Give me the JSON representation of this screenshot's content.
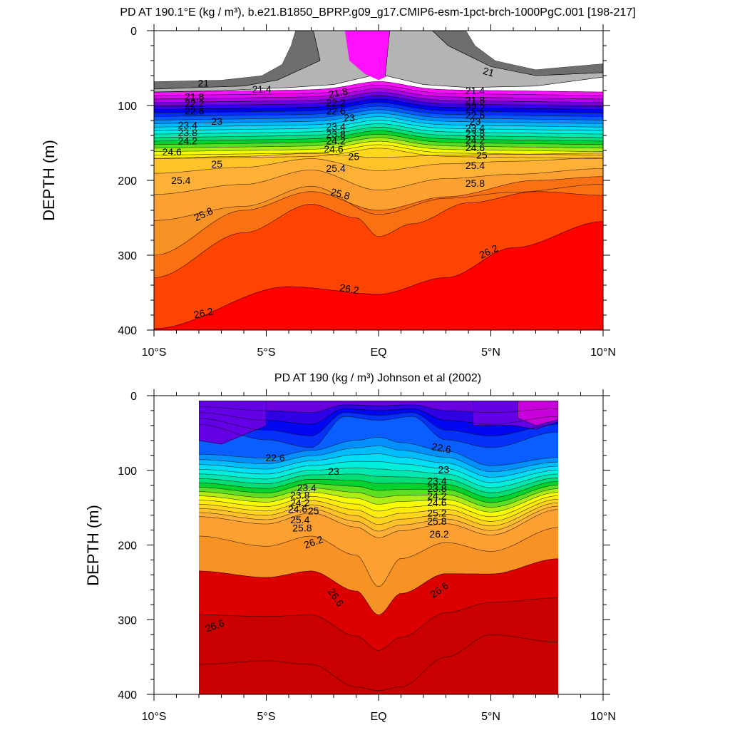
{
  "chart_data": [
    {
      "type": "contour",
      "title": "PD AT 190.1°E (kg / m³), b.e21.B1850_BPRP.g09_g17.CMIP6-esm-1pct-brch-1000PgC.001 [198-217]",
      "ylabel": "DEPTH (m)",
      "xlabel": "",
      "x_ticklabels": [
        "10°S",
        "5°S",
        "EQ",
        "5°N",
        "10°N"
      ],
      "x_tick_values": [
        -10,
        -5,
        0,
        5,
        10
      ],
      "y_ticklabels": [
        "0",
        "100",
        "200",
        "300",
        "400"
      ],
      "y_tick_values": [
        0,
        100,
        200,
        300,
        400
      ],
      "xlim": [
        -10,
        10
      ],
      "ylim": [
        400,
        0
      ],
      "levels": [
        21,
        21.2,
        21.4,
        21.6,
        21.8,
        22,
        22.2,
        22.4,
        22.6,
        22.8,
        23,
        23.2,
        23.4,
        23.6,
        23.8,
        24,
        24.2,
        24.4,
        24.6,
        24.8,
        25,
        25.2,
        25.4,
        25.6,
        25.8,
        26,
        26.2
      ],
      "contour_labels": [
        {
          "text": "21",
          "lat": -7.8,
          "depth": 70,
          "angle": 0
        },
        {
          "text": "21.4",
          "lat": -5.2,
          "depth": 78,
          "angle": 0
        },
        {
          "text": "21.8",
          "lat": -8.2,
          "depth": 88,
          "angle": 0
        },
        {
          "text": "22.2",
          "lat": -8.2,
          "depth": 97,
          "angle": 0
        },
        {
          "text": "22.6",
          "lat": -8.2,
          "depth": 107,
          "angle": 0
        },
        {
          "text": "23",
          "lat": -7.2,
          "depth": 121,
          "angle": 0
        },
        {
          "text": "23.4",
          "lat": -8.5,
          "depth": 126,
          "angle": 0
        },
        {
          "text": "23.8",
          "lat": -8.5,
          "depth": 136,
          "angle": 0
        },
        {
          "text": "24.2",
          "lat": -8.5,
          "depth": 147,
          "angle": 0
        },
        {
          "text": "24.6",
          "lat": -9.2,
          "depth": 162,
          "angle": 0
        },
        {
          "text": "25",
          "lat": -7.2,
          "depth": 178,
          "angle": 0
        },
        {
          "text": "25.4",
          "lat": -8.8,
          "depth": 200,
          "angle": 0
        },
        {
          "text": "25.8",
          "lat": -7.8,
          "depth": 245,
          "angle": -25
        },
        {
          "text": "26.2",
          "lat": -7.8,
          "depth": 377,
          "angle": -12
        },
        {
          "text": "21.8",
          "lat": -1.8,
          "depth": 83,
          "angle": -10
        },
        {
          "text": "22.2",
          "lat": -1.9,
          "depth": 96,
          "angle": 0
        },
        {
          "text": "22.6",
          "lat": -1.9,
          "depth": 107,
          "angle": 0
        },
        {
          "text": "23",
          "lat": -1.3,
          "depth": 116,
          "angle": 0
        },
        {
          "text": "23.4",
          "lat": -1.9,
          "depth": 128,
          "angle": 0
        },
        {
          "text": "23.8",
          "lat": -1.9,
          "depth": 138,
          "angle": 0
        },
        {
          "text": "24.2",
          "lat": -1.9,
          "depth": 147,
          "angle": 0
        },
        {
          "text": "24.6",
          "lat": -2.0,
          "depth": 158,
          "angle": 0
        },
        {
          "text": "25",
          "lat": -1.1,
          "depth": 168,
          "angle": 0
        },
        {
          "text": "25.4",
          "lat": -1.9,
          "depth": 184,
          "angle": 0
        },
        {
          "text": "25.8",
          "lat": -1.7,
          "depth": 218,
          "angle": 15
        },
        {
          "text": "26.2",
          "lat": -1.3,
          "depth": 345,
          "angle": 10
        },
        {
          "text": "21.4",
          "lat": 4.3,
          "depth": 80,
          "angle": 0
        },
        {
          "text": "21.8",
          "lat": 4.3,
          "depth": 93,
          "angle": 0
        },
        {
          "text": "22.2",
          "lat": 4.3,
          "depth": 103,
          "angle": 0
        },
        {
          "text": "22.6",
          "lat": 4.3,
          "depth": 113,
          "angle": 0
        },
        {
          "text": "23",
          "lat": 4.3,
          "depth": 121,
          "angle": 0
        },
        {
          "text": "23.4",
          "lat": 4.3,
          "depth": 130,
          "angle": 0
        },
        {
          "text": "23.8",
          "lat": 4.3,
          "depth": 137,
          "angle": 0
        },
        {
          "text": "24.2",
          "lat": 4.3,
          "depth": 146,
          "angle": 0
        },
        {
          "text": "24.6",
          "lat": 4.3,
          "depth": 156,
          "angle": 0
        },
        {
          "text": "25",
          "lat": 4.6,
          "depth": 166,
          "angle": 0
        },
        {
          "text": "25.4",
          "lat": 4.3,
          "depth": 180,
          "angle": 0
        },
        {
          "text": "25.8",
          "lat": 4.3,
          "depth": 204,
          "angle": 0
        },
        {
          "text": "26.2",
          "lat": 4.9,
          "depth": 295,
          "angle": -25
        },
        {
          "text": "21",
          "lat": 4.9,
          "depth": 55,
          "angle": 15
        }
      ]
    },
    {
      "type": "contour",
      "title": "PD AT 190 (kg / m³) Johnson et al (2002)",
      "ylabel": "DEPTH (m)",
      "xlabel": "",
      "x_ticklabels": [
        "10°S",
        "5°S",
        "EQ",
        "5°N",
        "10°N"
      ],
      "x_tick_values": [
        -10,
        -5,
        0,
        5,
        10
      ],
      "y_ticklabels": [
        "0",
        "100",
        "200",
        "300",
        "400"
      ],
      "y_tick_values": [
        0,
        100,
        200,
        300,
        400
      ],
      "xlim": [
        -10,
        10
      ],
      "ylim": [
        400,
        0
      ],
      "data_lat_range": [
        -8,
        8
      ],
      "data_depth_range": [
        7,
        400
      ],
      "levels": [
        22.2,
        22.4,
        22.6,
        22.8,
        23,
        23.2,
        23.4,
        23.6,
        23.8,
        24,
        24.2,
        24.4,
        24.6,
        24.8,
        25,
        25.2,
        25.4,
        25.6,
        25.8,
        26,
        26.2,
        26.4,
        26.6,
        26.8
      ],
      "contour_labels": [
        {
          "text": "22.6",
          "lat": -4.6,
          "depth": 83,
          "angle": 0
        },
        {
          "text": "23",
          "lat": -2.0,
          "depth": 101,
          "angle": 0
        },
        {
          "text": "23.4",
          "lat": -3.2,
          "depth": 123,
          "angle": 0
        },
        {
          "text": "23.8",
          "lat": -3.5,
          "depth": 133,
          "angle": 0
        },
        {
          "text": "24.2",
          "lat": -3.5,
          "depth": 143,
          "angle": 0
        },
        {
          "text": "24.6",
          "lat": -3.6,
          "depth": 152,
          "angle": 0
        },
        {
          "text": "25",
          "lat": -2.9,
          "depth": 154,
          "angle": 0
        },
        {
          "text": "25.4",
          "lat": -3.5,
          "depth": 166,
          "angle": 0
        },
        {
          "text": "25.8",
          "lat": -3.4,
          "depth": 177,
          "angle": 0
        },
        {
          "text": "26.2",
          "lat": -2.9,
          "depth": 196,
          "angle": -20
        },
        {
          "text": "26.6",
          "lat": -1.9,
          "depth": 270,
          "angle": 55
        },
        {
          "text": "26.6",
          "lat": -7.3,
          "depth": 308,
          "angle": -20
        },
        {
          "text": "22.6",
          "lat": 2.8,
          "depth": 70,
          "angle": 10
        },
        {
          "text": "23",
          "lat": 2.9,
          "depth": 99,
          "angle": 0
        },
        {
          "text": "23.4",
          "lat": 2.6,
          "depth": 114,
          "angle": 0
        },
        {
          "text": "23.8",
          "lat": 2.6,
          "depth": 124,
          "angle": 0
        },
        {
          "text": "24.2",
          "lat": 2.6,
          "depth": 134,
          "angle": 0
        },
        {
          "text": "24.6",
          "lat": 2.6,
          "depth": 143,
          "angle": 0
        },
        {
          "text": "25.2",
          "lat": 2.6,
          "depth": 157,
          "angle": 0
        },
        {
          "text": "25.8",
          "lat": 2.6,
          "depth": 168,
          "angle": 0
        },
        {
          "text": "26.2",
          "lat": 2.7,
          "depth": 185,
          "angle": 0
        },
        {
          "text": "26.6",
          "lat": 2.7,
          "depth": 260,
          "angle": -35
        }
      ]
    }
  ]
}
